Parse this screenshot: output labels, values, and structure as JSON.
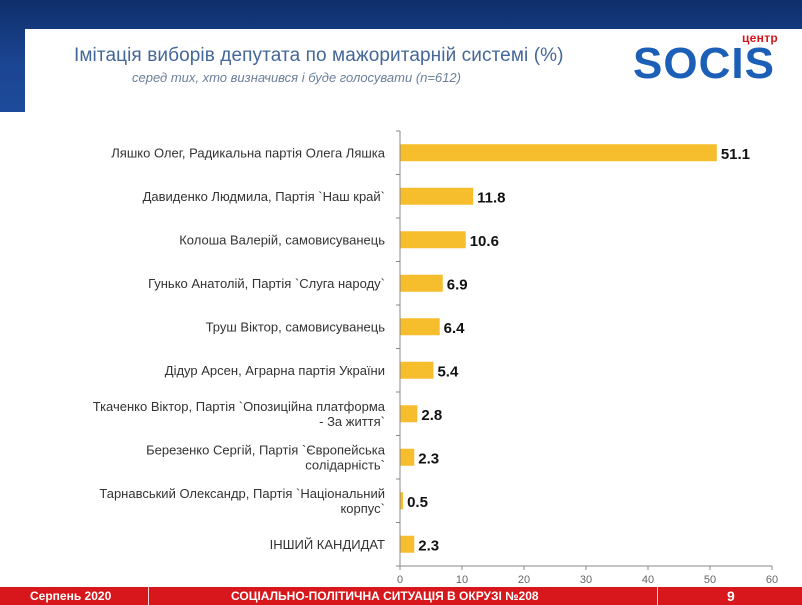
{
  "header": {
    "title": "Імітація виборів депутата по мажоритарній системі (%)",
    "subtitle": "серед тих, хто визначився і буде голосувати (n=612)"
  },
  "logo": {
    "small": "центр",
    "main": "SOCIS"
  },
  "colors": {
    "bar": "#f6be2c",
    "footer": "#d7171b",
    "header_bg": "#1b4592",
    "title": "#44679a",
    "axis": "#888888"
  },
  "chart_data": {
    "type": "bar",
    "orientation": "horizontal",
    "categories": [
      [
        "Ляшко Олег, Радикальна партія Олега Ляшка"
      ],
      [
        "Давиденко Людмила, Партія `Наш край`"
      ],
      [
        "Колоша Валерій, самовисуванець"
      ],
      [
        "Гунько Анатолій, Партія `Слуга народу`"
      ],
      [
        "Труш Віктор, самовисуванець"
      ],
      [
        "Дідур Арсен, Аграрна партія України"
      ],
      [
        "Ткаченко Віктор, Партія `Опозиційна платформа",
        "- За життя`"
      ],
      [
        "Березенко Сергій, Партія `Європейська",
        "солідарність`"
      ],
      [
        "Тарнавський Олександр, Партія `Національний",
        "корпус`"
      ],
      [
        "ІНШИЙ КАНДИДАТ"
      ]
    ],
    "values": [
      51.1,
      11.8,
      10.6,
      6.9,
      6.4,
      5.4,
      2.8,
      2.3,
      0.5,
      2.3
    ],
    "data_labels": [
      "51.1",
      "11.8",
      "10.6",
      "6.9",
      "6.4",
      "5.4",
      "2.8",
      "2.3",
      "0.5",
      "2.3"
    ],
    "xlim": [
      0,
      60
    ],
    "xticks": [
      0,
      10,
      20,
      30,
      40,
      50,
      60
    ],
    "grid": false,
    "legend": "none"
  },
  "footer": {
    "left": "Серпень 2020",
    "center": "СОЦІАЛЬНО-ПОЛІТИЧНА СИТУАЦІЯ В ОКРУЗІ №208",
    "page": "9"
  }
}
